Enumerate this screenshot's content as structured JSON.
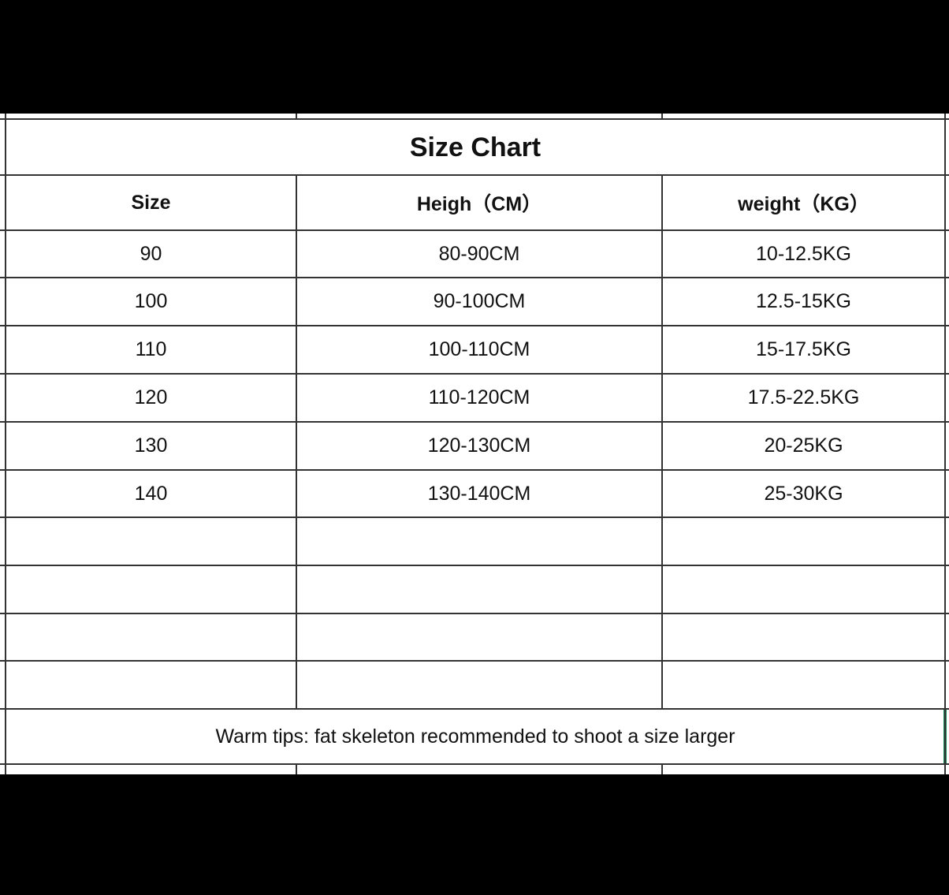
{
  "title": "Size Chart",
  "headers": [
    "Size",
    "Heigh（CM）",
    "weight（KG）"
  ],
  "rows": [
    [
      "90",
      "80-90CM",
      "10-12.5KG"
    ],
    [
      "100",
      "90-100CM",
      "12.5-15KG"
    ],
    [
      "110",
      "100-110CM",
      "15-17.5KG"
    ],
    [
      "120",
      "110-120CM",
      "17.5-22.5KG"
    ],
    [
      "130",
      "120-130CM",
      "20-25KG"
    ],
    [
      "140",
      "130-140CM",
      "25-30KG"
    ],
    [
      "",
      "",
      ""
    ],
    [
      "",
      "",
      ""
    ],
    [
      "",
      "",
      ""
    ],
    [
      "",
      "",
      ""
    ]
  ],
  "note": "Warm tips: fat skeleton recommended to shoot a size larger",
  "selection_color": "#1e8c5a"
}
